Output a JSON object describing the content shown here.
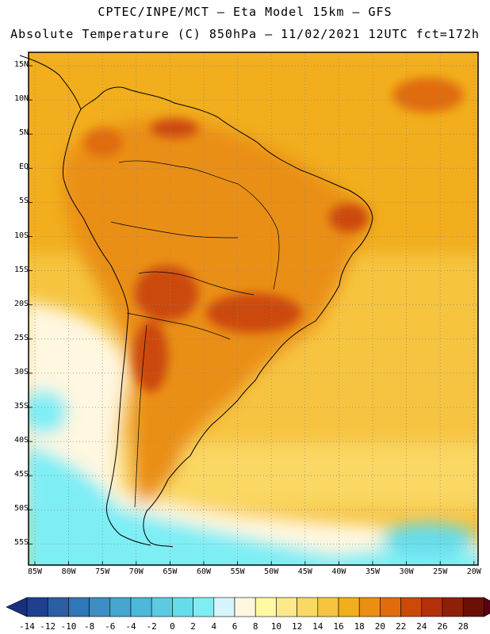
{
  "title_line1": "CPTEC/INPE/MCT –  Eta Model 15km – GFS",
  "title_line2": "Absolute Temperature (C) 850hPa – 11/02/2021 12UTC fct=172h",
  "lat_labels": [
    "15N",
    "10N",
    "5N",
    "EQ",
    "5S",
    "10S",
    "15S",
    "20S",
    "25S",
    "30S",
    "35S",
    "40S",
    "45S",
    "50S",
    "55S"
  ],
  "lon_labels": [
    "85W",
    "80W",
    "75W",
    "70W",
    "65W",
    "60W",
    "55W",
    "50W",
    "45W",
    "40W",
    "35W",
    "30W",
    "25W",
    "20W"
  ],
  "colorbar": {
    "labels": [
      "-14",
      "-12",
      "-10",
      "-8",
      "-6",
      "-4",
      "-2",
      "0",
      "2",
      "4",
      "6",
      "8",
      "10",
      "12",
      "14",
      "16",
      "18",
      "20",
      "22",
      "24",
      "26",
      "28"
    ],
    "colors": [
      "#1f3f91",
      "#2a5ea6",
      "#2f77b5",
      "#3b8fc4",
      "#45a6cf",
      "#4db8d9",
      "#5bcbe3",
      "#66dcea",
      "#7eeef5",
      "#d6f5fa",
      "#fff7e0",
      "#fffaa0",
      "#fde98a",
      "#fad864",
      "#f6c43f",
      "#f2ae1c",
      "#ea8f14",
      "#e06c0d",
      "#cc4a08",
      "#b3320a",
      "#8f2008",
      "#6b1006"
    ],
    "left_arrow_color": "#1a2f80",
    "right_arrow_color": "#5a0010"
  },
  "colors": {
    "ocean_tropical": "#f2ae1c",
    "ocean_subtropical": "#f6c43f",
    "ocean_midlat": "#fad864",
    "cold_tongue": "#fff7e0",
    "cold_core": "#7eeef5",
    "land_warm": "#ea8f14",
    "land_hot": "#cc4a08",
    "border": "#000000"
  }
}
